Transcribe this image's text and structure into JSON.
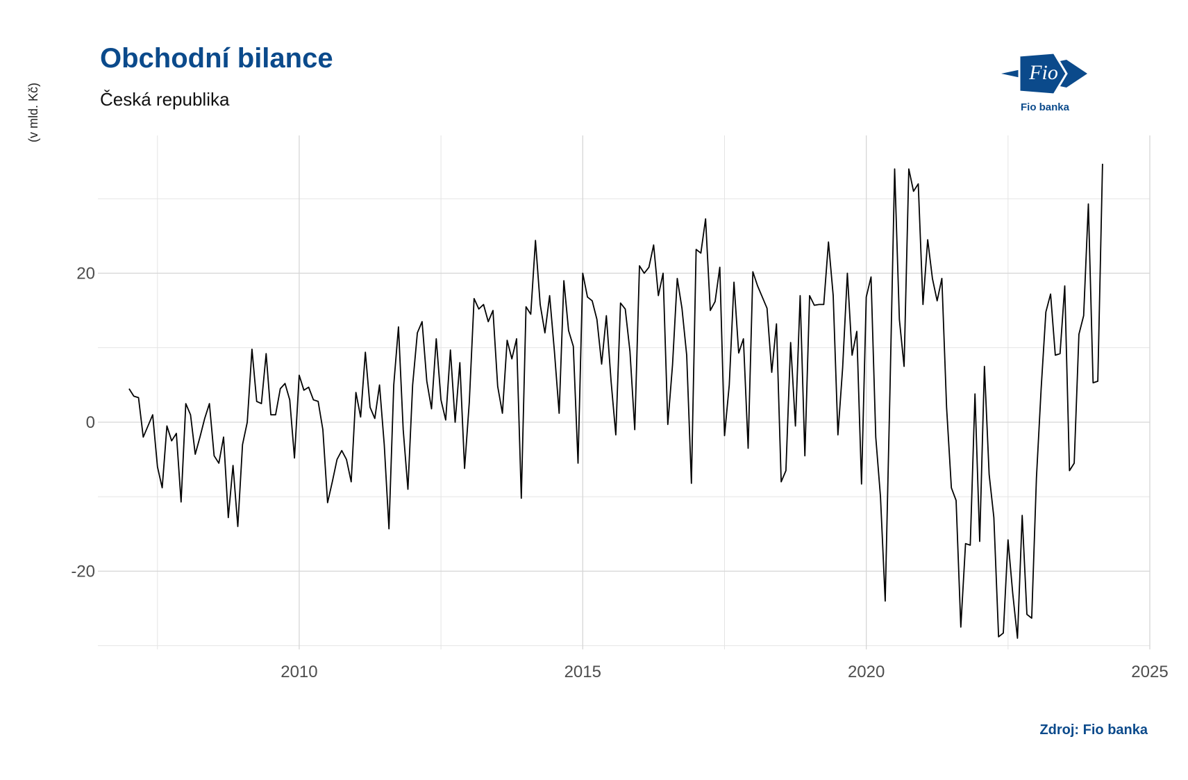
{
  "header": {
    "title": "Obchodní bilance",
    "subtitle": "Česká republika"
  },
  "logo": {
    "mark_text": "Fio",
    "caption": "Fio banka"
  },
  "footer": {
    "source": "Zdroj: Fio banka"
  },
  "chart_data": {
    "type": "line",
    "title": "Obchodní bilance",
    "subtitle": "Česká republika",
    "xlabel": "",
    "ylabel": "(v mld. Kč)",
    "xlim": [
      2006.45,
      2025.0
    ],
    "ylim": [
      -30.5,
      38.5
    ],
    "x_ticks": [
      2010,
      2015,
      2020,
      2025
    ],
    "x_tick_labels": [
      "2010",
      "2015",
      "2020",
      "2025"
    ],
    "y_ticks": [
      -20,
      0,
      20
    ],
    "y_tick_labels": [
      "-20",
      "0",
      "20"
    ],
    "grid": true,
    "legend": "none",
    "line_color": "#000000",
    "x_start": 2007.0,
    "x_step_months": 1,
    "series": [
      {
        "values": [
          4.5,
          3.5,
          3.3,
          -2.0,
          -0.5,
          1.0,
          -6.0,
          -8.8,
          -0.5,
          -2.5,
          -1.5,
          -10.7,
          2.5,
          1.0,
          -4.3,
          -2.0,
          0.5,
          2.5,
          -4.5,
          -5.5,
          -2.0,
          -12.8,
          -5.8,
          -14.0,
          -3.0,
          0.0,
          9.8,
          2.8,
          2.5,
          9.2,
          1.0,
          1.0,
          4.5,
          5.2,
          3.0,
          -4.8,
          6.3,
          4.3,
          4.7,
          3.0,
          2.8,
          -1.0,
          -10.8,
          -8.0,
          -5.0,
          -3.8,
          -5.0,
          -8.0,
          4.0,
          0.7,
          9.4,
          2.0,
          0.5,
          5.0,
          -3.0,
          -14.3,
          5.0,
          12.8,
          -1.0,
          -9.0,
          5.0,
          12.0,
          13.5,
          5.5,
          1.8,
          11.2,
          3.0,
          0.3,
          9.7,
          0.0,
          8.0,
          -6.2,
          2.7,
          16.6,
          15.2,
          15.8,
          13.5,
          15.0,
          4.8,
          1.2,
          11.0,
          8.5,
          11.2,
          -10.2,
          15.5,
          14.5,
          24.4,
          15.8,
          12.0,
          17.0,
          9.5,
          1.2,
          19.0,
          12.3,
          10.2,
          -5.5,
          20.0,
          16.8,
          16.3,
          13.8,
          7.8,
          14.3,
          5.5,
          -1.7,
          16.0,
          15.2,
          9.5,
          -1.0,
          21.0,
          20.0,
          20.8,
          23.8,
          17.0,
          20.0,
          -0.3,
          7.7,
          19.3,
          15.3,
          9.0,
          -8.2,
          23.2,
          22.7,
          27.3,
          15.0,
          16.2,
          20.8,
          -1.8,
          5.0,
          18.8,
          9.3,
          11.2,
          -3.5,
          20.2,
          18.3,
          16.8,
          15.3,
          6.7,
          13.2,
          -8.0,
          -6.5,
          10.7,
          -0.5,
          17.0,
          -4.5,
          17.0,
          15.7,
          15.8,
          15.8,
          24.2,
          17.0,
          -1.7,
          7.3,
          20.0,
          9.0,
          12.2,
          -8.3,
          16.8,
          19.5,
          -2.0,
          -10.0,
          -24.0,
          4.0,
          34.0,
          13.8,
          7.5,
          34.0,
          31.0,
          32.0,
          15.8,
          24.5,
          19.3,
          16.3,
          19.3,
          2.0,
          -8.8,
          -10.5,
          -27.5,
          -16.3,
          -16.5,
          3.8,
          -16.0,
          7.5,
          -7.0,
          -12.8,
          -28.8,
          -28.3,
          -15.8,
          -23.0,
          -29.0,
          -12.5,
          -25.8,
          -26.3,
          -7.5,
          4.5,
          14.8,
          17.2,
          9.0,
          9.2,
          18.3,
          -6.5,
          -5.5,
          11.8,
          14.3,
          29.3,
          5.3,
          5.5,
          34.7
        ]
      }
    ]
  }
}
